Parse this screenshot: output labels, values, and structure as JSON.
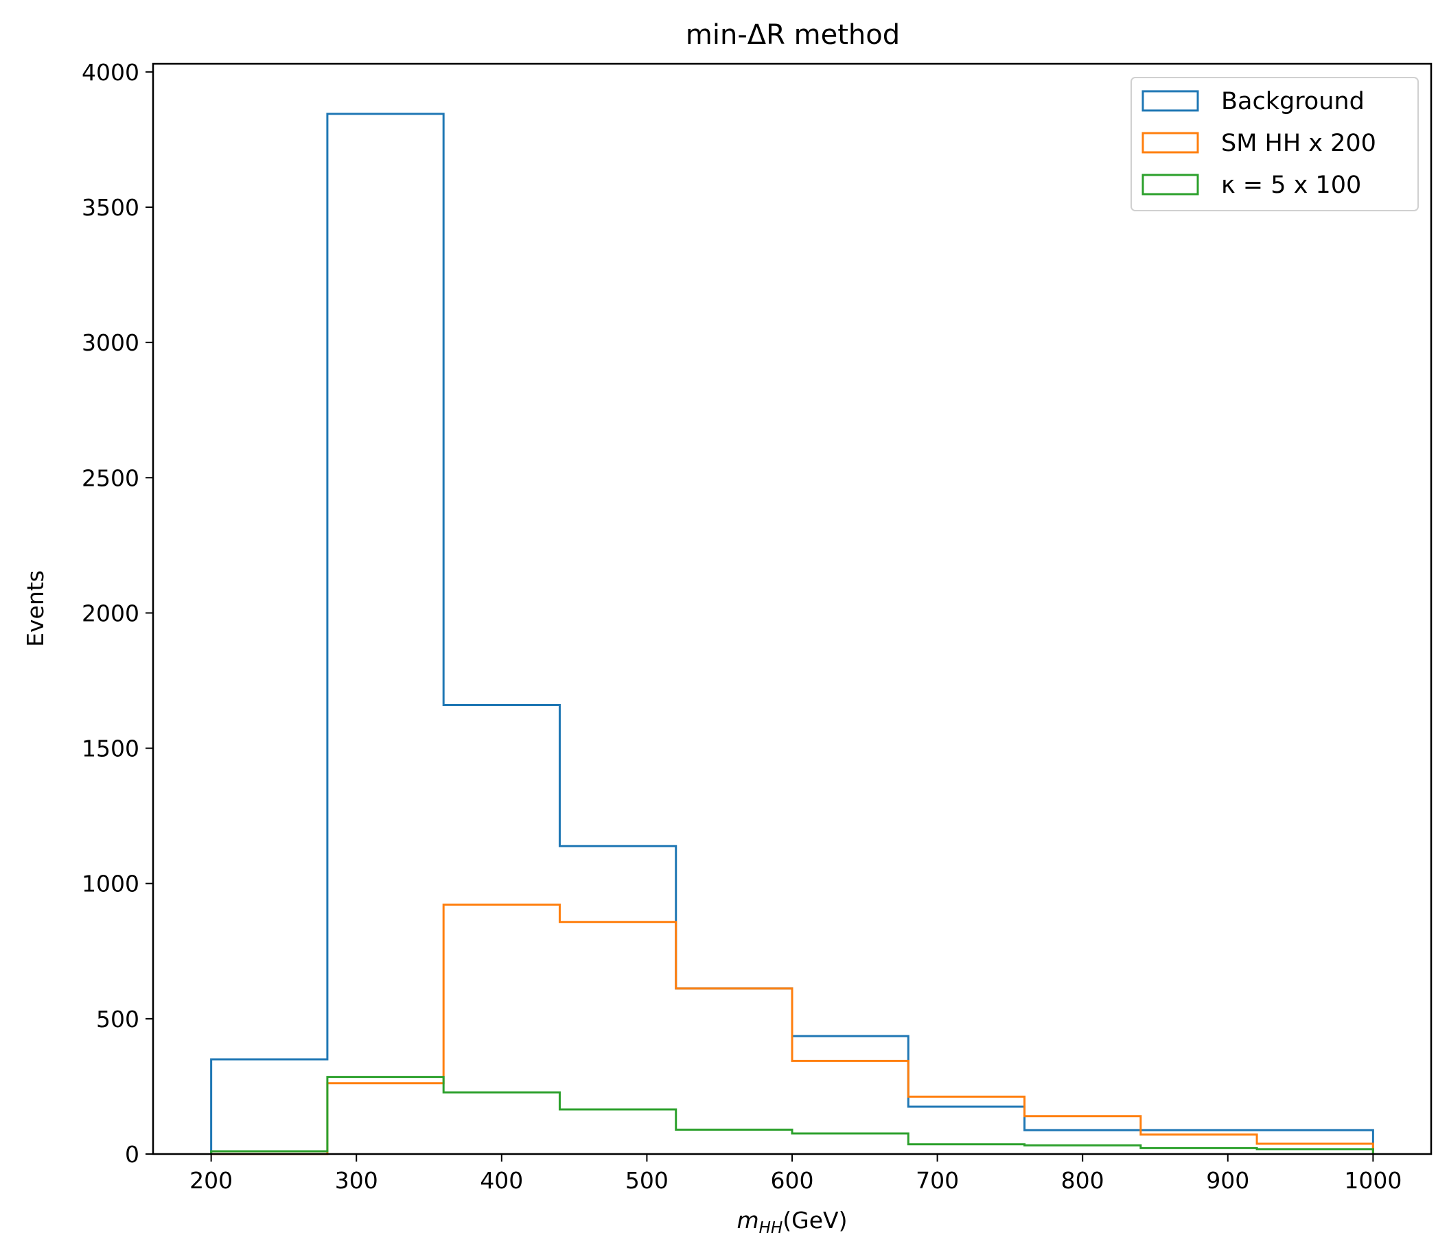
{
  "chart_data": {
    "type": "histogram-step",
    "title": "min-ΔR method",
    "xlabel": "m_HH(GeV)",
    "ylabel": "Events",
    "xlim": [
      160,
      1040
    ],
    "ylim": [
      0,
      4030
    ],
    "x_ticks": [
      200,
      300,
      400,
      500,
      600,
      700,
      800,
      900,
      1000
    ],
    "y_ticks": [
      0,
      500,
      1000,
      1500,
      2000,
      2500,
      3000,
      3500,
      4000
    ],
    "bin_edges": [
      200,
      280,
      360,
      440,
      520,
      600,
      680,
      760,
      840,
      920,
      1000
    ],
    "legend_position": "top-right",
    "grid": false,
    "series": [
      {
        "name": "Background",
        "color": "#1f77b4",
        "values": [
          350,
          3845,
          1660,
          1138,
          612,
          436,
          175,
          88,
          88,
          88
        ]
      },
      {
        "name": "SM HH x 200",
        "color": "#ff7f0e",
        "values": [
          0,
          262,
          922,
          858,
          612,
          344,
          212,
          140,
          72,
          38
        ]
      },
      {
        "name": "κ = 5 x 100",
        "color": "#2ca02c",
        "values": [
          10,
          285,
          228,
          165,
          90,
          76,
          36,
          32,
          22,
          18
        ]
      }
    ]
  }
}
